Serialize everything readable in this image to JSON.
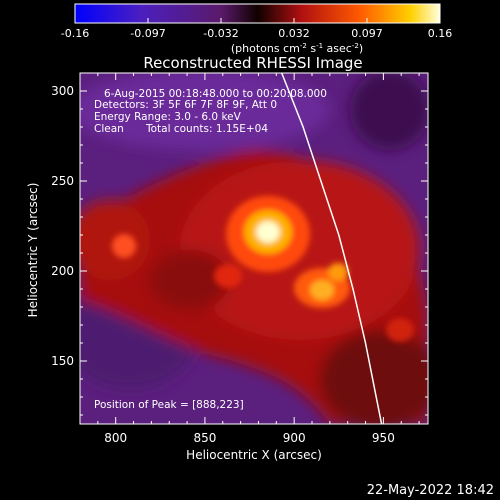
{
  "chart_data": {
    "type": "heatmap",
    "title": "Reconstructed RHESSI Image",
    "xlabel": "Heliocentric X (arcsec)",
    "ylabel": "Heliocentric Y (arcsec)",
    "xlim": [
      780,
      975
    ],
    "ylim": [
      115,
      310
    ],
    "xticks": [
      800,
      850,
      900,
      950
    ],
    "yticks": [
      150,
      200,
      250,
      300
    ],
    "colorbar": {
      "min": -0.16,
      "max": 0.16,
      "ticks": [
        "-0.16",
        "-0.097",
        "-0.032",
        "0.032",
        "0.097",
        "0.16"
      ],
      "label_prefix": "(photons cm",
      "label_sup1": "-2",
      "label_mid": " s",
      "label_sup2": "-1",
      "label_mid2": " asec",
      "label_sup3": "-2",
      "label_suffix": ")"
    },
    "annotations": {
      "date": "6-Aug-2015 00:18:48.000 to 00:20:08.000",
      "detectors": "Detectors: 3F 5F 6F 7F 8F 9F, Att 0",
      "energy": "Energy Range: 3.0 - 6.0 keV",
      "clean": "Clean",
      "counts": "Total counts: 1.15E+04",
      "peak": "Position of Peak = [888,223]"
    },
    "peak": [
      888,
      223
    ],
    "sources": [
      {
        "x": 888,
        "y": 223,
        "intensity": 0.16
      },
      {
        "x": 920,
        "y": 200,
        "intensity": 0.11
      },
      {
        "x": 935,
        "y": 212,
        "intensity": 0.09
      },
      {
        "x": 806,
        "y": 218,
        "intensity": 0.07
      },
      {
        "x": 870,
        "y": 200,
        "intensity": 0.08
      }
    ],
    "limb_curve": [
      [
        893,
        310
      ],
      [
        905,
        280
      ],
      [
        915,
        250
      ],
      [
        925,
        220
      ],
      [
        933,
        190
      ],
      [
        940,
        160
      ],
      [
        946,
        130
      ],
      [
        949,
        115
      ]
    ]
  },
  "footer": {
    "timestamp": "22-May-2022 18:42"
  }
}
